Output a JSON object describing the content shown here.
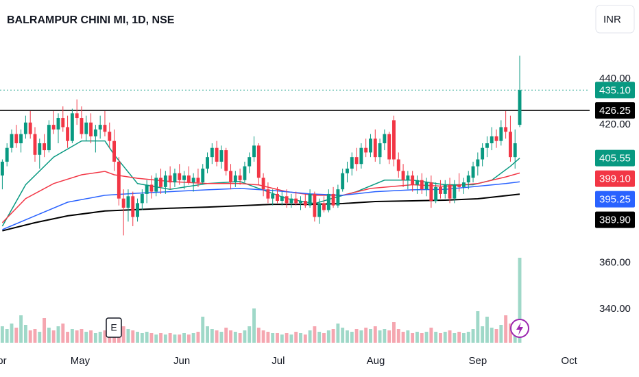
{
  "chart_data": {
    "type": "candlestick",
    "title": "BALRAMPUR CHINI MI, 1D, NSE",
    "currency": "INR",
    "earnings_marker": "E",
    "up_color": "#089981",
    "down_color": "#f23645",
    "volume_up_color": "#9fd8c8",
    "volume_down_color": "#f5a6b0",
    "xlim": [
      -0.5,
      126
    ],
    "xticks": [
      {
        "value": -0.8,
        "label": "Apr"
      },
      {
        "value": 16.7,
        "label": "May"
      },
      {
        "value": 38.5,
        "label": "Jun"
      },
      {
        "value": 59.2,
        "label": "Jul"
      },
      {
        "value": 80.1,
        "label": "Aug"
      },
      {
        "value": 102,
        "label": "Sep"
      },
      {
        "value": 121.6,
        "label": "Oct"
      }
    ],
    "ylim": [
      325.4,
      474.2
    ],
    "yticks": [
      {
        "value": 340,
        "label": "340.00"
      },
      {
        "value": 360,
        "label": "360.00"
      },
      {
        "value": 420,
        "label": "420.00"
      },
      {
        "value": 440,
        "label": "440.00"
      }
    ],
    "grid": false,
    "volume_lim": [
      0,
      100
    ],
    "ohlc": [
      [
        398,
        405,
        392,
        404
      ],
      [
        404,
        412,
        402,
        410
      ],
      [
        410,
        418,
        408,
        416
      ],
      [
        416,
        420,
        410,
        412
      ],
      [
        412,
        418,
        408,
        416
      ],
      [
        416,
        424,
        414,
        421
      ],
      [
        421,
        426,
        414,
        416
      ],
      [
        416,
        419,
        404,
        407
      ],
      [
        407,
        414,
        401,
        412
      ],
      [
        412,
        416,
        406,
        409
      ],
      [
        409,
        422,
        408,
        420
      ],
      [
        420,
        426,
        416,
        418
      ],
      [
        418,
        425,
        412,
        423
      ],
      [
        423,
        428,
        417,
        419
      ],
      [
        419,
        424,
        410,
        413
      ],
      [
        413,
        427,
        412,
        425
      ],
      [
        425,
        431,
        420,
        423
      ],
      [
        423,
        428,
        414,
        416
      ],
      [
        416,
        424,
        413,
        421
      ],
      [
        421,
        425,
        412,
        415
      ],
      [
        415,
        420,
        408,
        418
      ],
      [
        418,
        424,
        414,
        420
      ],
      [
        420,
        426,
        415,
        417
      ],
      [
        417,
        421,
        410,
        413
      ],
      [
        413,
        418,
        400,
        404
      ],
      [
        404,
        406,
        385,
        388
      ],
      [
        388,
        392,
        372,
        384
      ],
      [
        384,
        392,
        378,
        389
      ],
      [
        389,
        391,
        376,
        380
      ],
      [
        380,
        388,
        378,
        386
      ],
      [
        386,
        392,
        383,
        390
      ],
      [
        390,
        396,
        386,
        394
      ],
      [
        394,
        398,
        388,
        391
      ],
      [
        391,
        399,
        389,
        397
      ],
      [
        397,
        401,
        390,
        393
      ],
      [
        393,
        400,
        390,
        398
      ],
      [
        398,
        402,
        392,
        395
      ],
      [
        395,
        401,
        393,
        399
      ],
      [
        399,
        403,
        394,
        396
      ],
      [
        396,
        400,
        392,
        398
      ],
      [
        398,
        402,
        394,
        395
      ],
      [
        395,
        399,
        391,
        397
      ],
      [
        397,
        401,
        393,
        395
      ],
      [
        395,
        403,
        394,
        401
      ],
      [
        401,
        408,
        399,
        406
      ],
      [
        406,
        412,
        403,
        410
      ],
      [
        410,
        413,
        402,
        404
      ],
      [
        404,
        411,
        401,
        409
      ],
      [
        409,
        410,
        398,
        400
      ],
      [
        400,
        403,
        392,
        395
      ],
      [
        395,
        400,
        393,
        398
      ],
      [
        398,
        401,
        394,
        396
      ],
      [
        396,
        404,
        395,
        402
      ],
      [
        402,
        408,
        399,
        406
      ],
      [
        406,
        415,
        404,
        411
      ],
      [
        411,
        412,
        394,
        397
      ],
      [
        397,
        399,
        389,
        392
      ],
      [
        392,
        395,
        386,
        388
      ],
      [
        388,
        392,
        385,
        390
      ],
      [
        390,
        393,
        386,
        387
      ],
      [
        387,
        391,
        385,
        389
      ],
      [
        389,
        392,
        384,
        386
      ],
      [
        386,
        390,
        384,
        388
      ],
      [
        388,
        391,
        385,
        386
      ],
      [
        386,
        389,
        383,
        387
      ],
      [
        387,
        390,
        384,
        385
      ],
      [
        385,
        392,
        384,
        390
      ],
      [
        390,
        391,
        378,
        380
      ],
      [
        380,
        388,
        377,
        386
      ],
      [
        386,
        389,
        382,
        383
      ],
      [
        383,
        392,
        382,
        390
      ],
      [
        390,
        393,
        384,
        385
      ],
      [
        385,
        394,
        384,
        392
      ],
      [
        392,
        401,
        391,
        399
      ],
      [
        399,
        404,
        395,
        401
      ],
      [
        401,
        408,
        398,
        406
      ],
      [
        406,
        410,
        400,
        403
      ],
      [
        403,
        412,
        401,
        410
      ],
      [
        410,
        414,
        406,
        408
      ],
      [
        408,
        416,
        406,
        414
      ],
      [
        414,
        418,
        404,
        406
      ],
      [
        406,
        414,
        403,
        412
      ],
      [
        412,
        418,
        409,
        416
      ],
      [
        416,
        417,
        403,
        405
      ],
      [
        422,
        424,
        402,
        405
      ],
      [
        405,
        408,
        397,
        400
      ],
      [
        400,
        403,
        393,
        396
      ],
      [
        396,
        400,
        392,
        398
      ],
      [
        398,
        400,
        391,
        394
      ],
      [
        394,
        398,
        390,
        396
      ],
      [
        396,
        399,
        390,
        392
      ],
      [
        392,
        397,
        389,
        395
      ],
      [
        395,
        398,
        384,
        387
      ],
      [
        387,
        395,
        386,
        393
      ],
      [
        393,
        396,
        388,
        390
      ],
      [
        390,
        396,
        388,
        394
      ],
      [
        394,
        397,
        386,
        388
      ],
      [
        388,
        396,
        386,
        394
      ],
      [
        394,
        399,
        391,
        393
      ],
      [
        393,
        397,
        390,
        395
      ],
      [
        395,
        400,
        392,
        398
      ],
      [
        397,
        404,
        395,
        402
      ],
      [
        402,
        408,
        398,
        405
      ],
      [
        405,
        412,
        402,
        410
      ],
      [
        410,
        415,
        406,
        412
      ],
      [
        412,
        419,
        409,
        415
      ],
      [
        415,
        418,
        410,
        413
      ],
      [
        413,
        422,
        411,
        419
      ],
      [
        419,
        426,
        414,
        417
      ],
      [
        417,
        424,
        404,
        406
      ],
      [
        406,
        418,
        401,
        412
      ],
      [
        420,
        450,
        419,
        435.1
      ]
    ],
    "volume": [
      12,
      10,
      14,
      11,
      20,
      13,
      9,
      10,
      8,
      18,
      11,
      9,
      12,
      14,
      8,
      10,
      9,
      10,
      8,
      9,
      7,
      8,
      9,
      11,
      13,
      15,
      12,
      10,
      9,
      8,
      7,
      8,
      7,
      6,
      7,
      6,
      7,
      6,
      6,
      7,
      6,
      7,
      8,
      19,
      12,
      10,
      9,
      8,
      11,
      9,
      8,
      7,
      9,
      12,
      25,
      11,
      9,
      8,
      7,
      7,
      6,
      7,
      6,
      8,
      7,
      6,
      9,
      12,
      8,
      7,
      9,
      10,
      14,
      11,
      9,
      8,
      10,
      9,
      11,
      10,
      12,
      9,
      10,
      9,
      15,
      10,
      8,
      9,
      7,
      8,
      7,
      8,
      11,
      8,
      7,
      8,
      9,
      7,
      8,
      7,
      8,
      10,
      23,
      12,
      19,
      11,
      10,
      13,
      20,
      14,
      12,
      62
    ],
    "price_lines": [
      {
        "value": 435.1,
        "label": "435.10",
        "color": "#089981",
        "style": "dotted"
      },
      {
        "value": 426.25,
        "label": "426.25",
        "color": "#000000",
        "style": "solid"
      }
    ],
    "series": [
      {
        "color": "#089981",
        "label": "405.55",
        "x": [
          0,
          5,
          11,
          17,
          22,
          24,
          29,
          36,
          44,
          51,
          55,
          61,
          67,
          72,
          76,
          82,
          88,
          95,
          101,
          105,
          109,
          111
        ],
        "values": [
          376,
          394,
          406,
          413,
          413,
          407,
          394.5,
          392,
          394.5,
          395.4,
          392.4,
          388,
          385.8,
          388.8,
          391,
          396,
          396,
          394,
          394,
          396,
          402,
          405.55
        ]
      },
      {
        "color": "#f23645",
        "label": "399.10",
        "x": [
          0,
          5,
          11,
          17,
          22,
          24,
          29,
          36,
          44,
          51,
          55,
          61,
          67,
          73,
          79,
          88,
          95,
          102,
          108,
          111
        ],
        "values": [
          377.5,
          388,
          394.5,
          398.3,
          399.8,
          398.3,
          396.8,
          395.4,
          394.5,
          394.5,
          393.9,
          391,
          389.4,
          389.4,
          392.4,
          394,
          393.3,
          394.5,
          397.4,
          399.1
        ]
      },
      {
        "color": "#2962ff",
        "label": "395.25",
        "x": [
          0,
          7,
          14,
          22,
          29,
          36,
          44,
          51,
          58,
          66,
          73,
          80,
          88,
          95,
          102,
          108,
          111
        ],
        "values": [
          374.5,
          380.5,
          386.4,
          389.4,
          390.3,
          391,
          391.8,
          392.4,
          391.5,
          390,
          389.4,
          391,
          391.8,
          392,
          393.3,
          394.5,
          395.25
        ]
      },
      {
        "color": "#000000",
        "label": "389.90",
        "x": [
          0,
          7,
          14,
          22,
          29,
          36,
          44,
          51,
          58,
          66,
          73,
          80,
          88,
          95,
          102,
          111
        ],
        "values": [
          374,
          377.5,
          380.5,
          382.6,
          383.2,
          383.8,
          384.3,
          384.9,
          385.5,
          385.5,
          385.8,
          386.7,
          387,
          387.3,
          387.9,
          389.9
        ]
      }
    ]
  }
}
